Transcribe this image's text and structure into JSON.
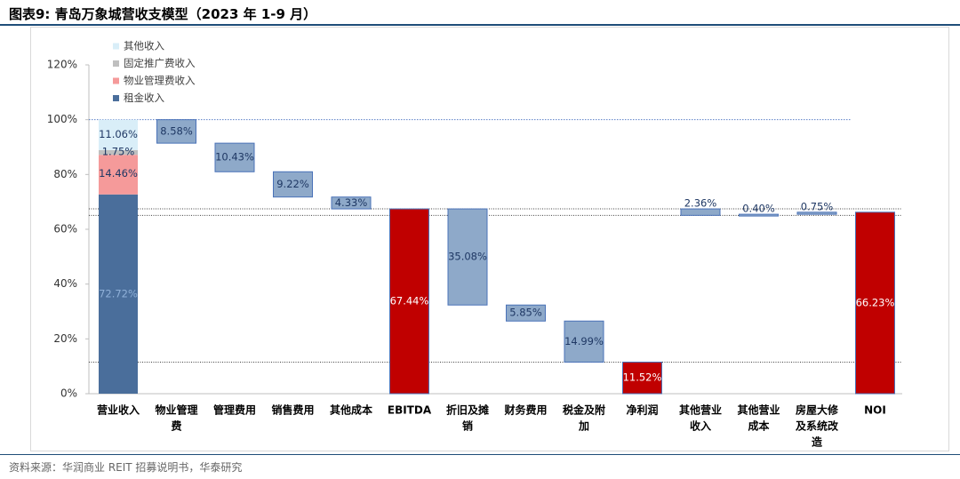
{
  "title": "图表9:  青岛万象城营收支模型（2023 年 1-9 月）",
  "source": "资料来源：华润商业 REIT 招募说明书，华泰研究",
  "colors": {
    "rent": "#4a6e9b",
    "property_fee": "#f59a9a",
    "promotion_fee": "#bfbfbf",
    "other_income": "#d9eef8",
    "expense": "#8ea9c9",
    "expense_border": "#4a72b8",
    "subtotal": "#c00000",
    "subtotal_border": "#4a72b8",
    "ref_line": "#5b7fc7"
  },
  "chart_data": {
    "type": "bar",
    "subtype": "waterfall",
    "ylim": [
      0,
      120
    ],
    "yticks": [
      "0%",
      "20%",
      "40%",
      "60%",
      "80%",
      "100%",
      "120%"
    ],
    "reference_line": 100,
    "legend": {
      "placement": "top-left",
      "entries": [
        "其他收入",
        "固定推广费收入",
        "物业管理费收入",
        "租金收入"
      ]
    },
    "stack": {
      "category": "营业收入",
      "segments": [
        {
          "name": "租金收入",
          "value": 72.72,
          "label": "72.72%"
        },
        {
          "name": "物业管理费收入",
          "value": 14.46,
          "label": "14.46%"
        },
        {
          "name": "固定推广费收入",
          "value": 1.75,
          "label": "1.75%"
        },
        {
          "name": "其他收入",
          "value": 11.06,
          "label": "11.06%"
        }
      ]
    },
    "bars": [
      {
        "category": [
          "物业管理",
          "费"
        ],
        "kind": "expense",
        "low": 91.42,
        "high": 100,
        "label": "8.58%"
      },
      {
        "category": [
          "管理费用"
        ],
        "kind": "expense",
        "low": 80.99,
        "high": 91.42,
        "label": "10.43%"
      },
      {
        "category": [
          "销售费用"
        ],
        "kind": "expense",
        "low": 71.77,
        "high": 80.99,
        "label": "9.22%"
      },
      {
        "category": [
          "其他成本"
        ],
        "kind": "expense",
        "low": 67.44,
        "high": 71.77,
        "label": "4.33%"
      },
      {
        "category": [
          "EBITDA"
        ],
        "kind": "subtotal",
        "low": 0,
        "high": 67.44,
        "label": "67.44%"
      },
      {
        "category": [
          "折旧及摊",
          "销"
        ],
        "kind": "expense",
        "low": 32.36,
        "high": 67.44,
        "label": "35.08%"
      },
      {
        "category": [
          "财务费用"
        ],
        "kind": "expense",
        "low": 26.51,
        "high": 32.36,
        "label": "5.85%"
      },
      {
        "category": [
          "税金及附",
          "加"
        ],
        "kind": "expense",
        "low": 11.52,
        "high": 26.51,
        "label": "14.99%"
      },
      {
        "category": [
          "净利润"
        ],
        "kind": "subtotal",
        "low": 0,
        "high": 11.52,
        "label": "11.52%"
      },
      {
        "category": [
          "其他营业",
          "收入"
        ],
        "kind": "expense",
        "low": 65.08,
        "high": 67.44,
        "label": "2.36%"
      },
      {
        "category": [
          "其他营业",
          "成本"
        ],
        "kind": "expense",
        "low": 65.08,
        "high": 65.48,
        "label": "0.40%"
      },
      {
        "category": [
          "房屋大修",
          "及系统改",
          "造"
        ],
        "kind": "expense",
        "low": 65.48,
        "high": 66.23,
        "label": "0.75%"
      },
      {
        "category": [
          "NOI"
        ],
        "kind": "subtotal",
        "low": 0,
        "high": 66.23,
        "label": "66.23%"
      }
    ],
    "dotted_lines": [
      {
        "value": 67.44
      },
      {
        "value": 65.08
      },
      {
        "value": 11.52
      }
    ]
  }
}
